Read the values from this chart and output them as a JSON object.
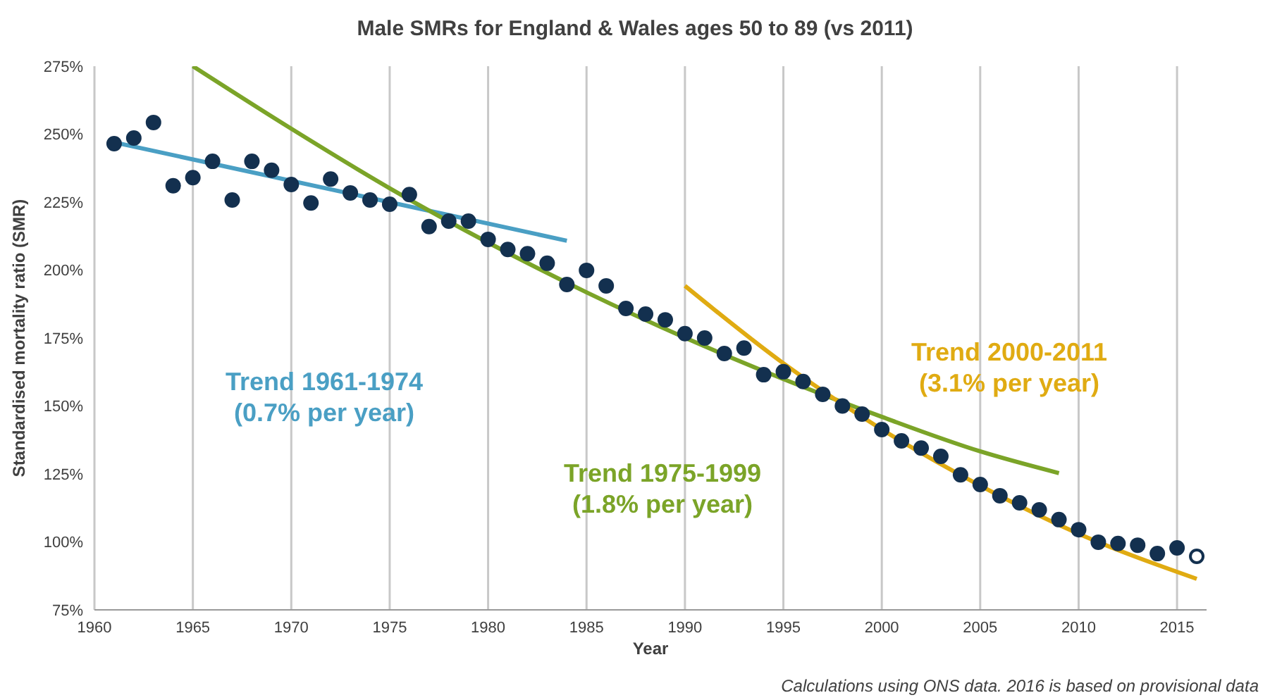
{
  "chart_data": {
    "type": "scatter",
    "title": "Male SMRs for England & Wales ages 50 to 89 (vs 2011)",
    "xlabel": "Year",
    "ylabel": "Standardised mortality ratio (SMR)",
    "xlim": [
      1960,
      2016.5
    ],
    "xticks": [
      1960,
      1965,
      1970,
      1975,
      1980,
      1985,
      1990,
      1995,
      2000,
      2005,
      2010,
      2015
    ],
    "ylim": [
      75,
      275
    ],
    "yticks": [
      {
        "value": 75,
        "label": "75%"
      },
      {
        "value": 100,
        "label": "100%"
      },
      {
        "value": 125,
        "label": "125%"
      },
      {
        "value": 150,
        "label": "150%"
      },
      {
        "value": 175,
        "label": "175%"
      },
      {
        "value": 200,
        "label": "200%"
      },
      {
        "value": 225,
        "label": "225%"
      },
      {
        "value": 250,
        "label": "250%"
      },
      {
        "value": 275,
        "label": "275%"
      }
    ],
    "grid": "x",
    "legend": false,
    "line_style": "solid",
    "series": [
      {
        "marker": "circle",
        "color": "#13304f",
        "x": [
          1961,
          1962,
          1963,
          1964,
          1965,
          1966,
          1967,
          1968,
          1969,
          1970,
          1971,
          1972,
          1973,
          1974,
          1975,
          1976,
          1977,
          1978,
          1979,
          1980,
          1981,
          1982,
          1983,
          1984,
          1985,
          1986,
          1987,
          1988,
          1989,
          1990,
          1991,
          1992,
          1993,
          1994,
          1995,
          1996,
          1997,
          1998,
          1999,
          2000,
          2001,
          2002,
          2003,
          2004,
          2005,
          2006,
          2007,
          2008,
          2009,
          2010,
          2011,
          2012,
          2013,
          2014,
          2015
        ],
        "values": [
          246.5,
          248.6,
          254.3,
          231,
          234,
          240,
          225.8,
          240,
          236.7,
          231.5,
          224.7,
          233.5,
          228.4,
          225.8,
          224.2,
          227.8,
          216,
          218,
          218,
          211.3,
          207.6,
          206,
          202.5,
          194.7,
          199.9,
          194.2,
          185.9,
          183.8,
          181.7,
          176.6,
          175,
          169.3,
          171.3,
          161.5,
          162.6,
          159,
          154.3,
          150,
          147,
          141.3,
          137.2,
          134.5,
          131.5,
          124.7,
          121.1,
          117,
          114.4,
          111.8,
          108.2,
          104.5,
          99.9,
          99.4,
          98.8,
          95.7,
          97.8
        ]
      },
      {
        "marker": "circle",
        "color": "#13304f",
        "x": [
          2016
        ],
        "values": [
          94.7
        ]
      },
      {
        "type": "line",
        "marker": "none",
        "color": "#4a9fc4",
        "x": [
          1961,
          1984
        ],
        "values": [
          247,
          210.8
        ]
      },
      {
        "type": "line",
        "marker": "none",
        "color": "#7ba428",
        "x": [
          1965,
          1970,
          1975,
          1980,
          1985,
          1990,
          1995,
          2000,
          2005,
          2009
        ],
        "values": [
          275,
          252,
          230.1,
          210.1,
          191.8,
          175.1,
          159.9,
          146,
          133.3,
          125.3
        ]
      },
      {
        "type": "line",
        "marker": "none",
        "color": "#e0ab12",
        "x": [
          1990,
          1995,
          2000,
          2005,
          2010,
          2016
        ],
        "values": [
          194.2,
          165.7,
          141.4,
          120.7,
          103,
          86.4
        ]
      }
    ],
    "annotations": [
      "Trend 1961-1974\n(0.7% per year)",
      "Trend 1975-1999\n(1.8% per year)",
      "Trend 2000-2011\n(3.1% per year)",
      "Calculations using ONS data. 2016 is based on provisional data"
    ]
  }
}
